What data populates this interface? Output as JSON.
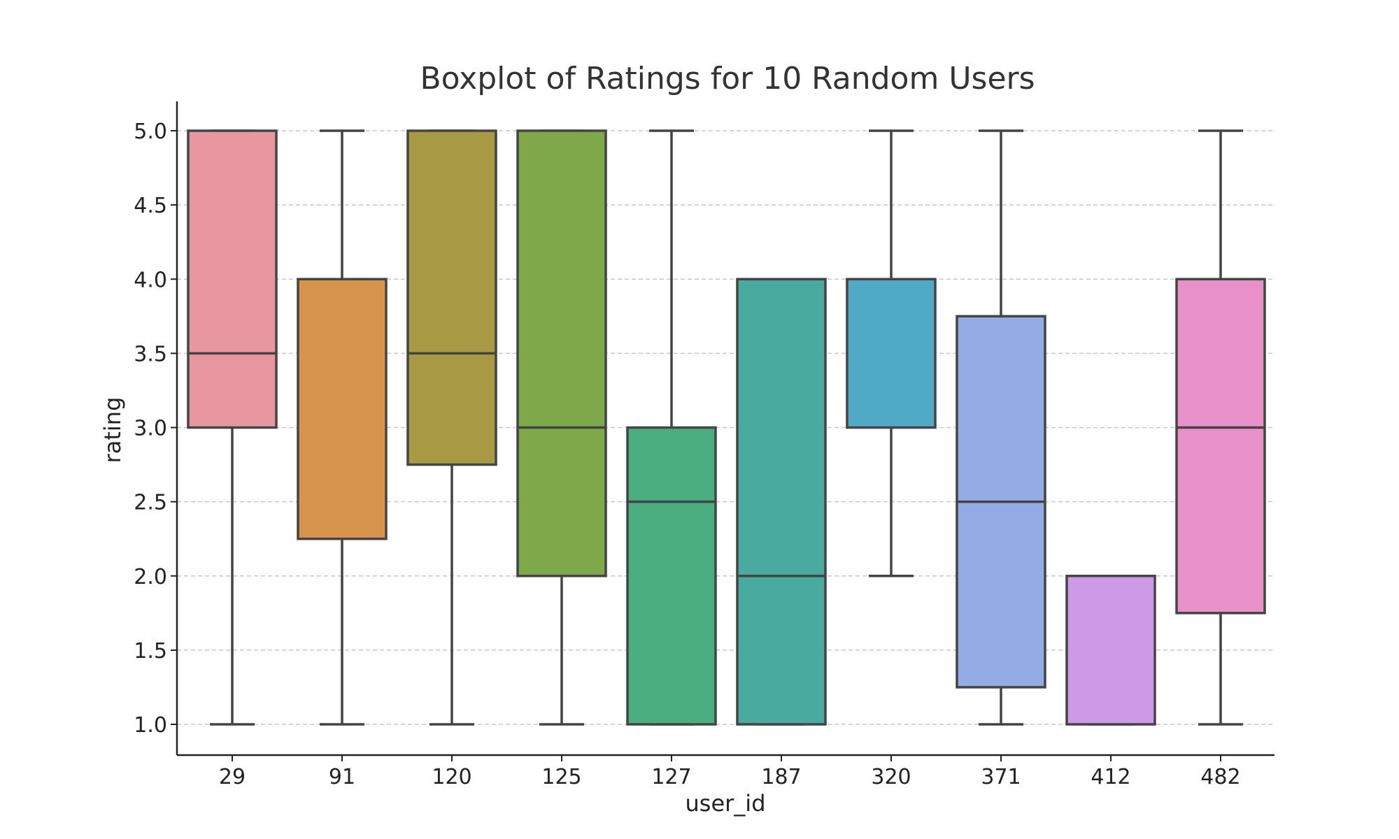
{
  "chart_data": {
    "type": "boxplot",
    "title": "Boxplot of Ratings for 10 Random Users",
    "xlabel": "user_id",
    "ylabel": "rating",
    "ylim": [
      0.8,
      5.2
    ],
    "yticks": [
      "1.0",
      "1.5",
      "2.0",
      "2.5",
      "3.0",
      "3.5",
      "4.0",
      "4.5",
      "5.0"
    ],
    "grid": "y",
    "legend": "none",
    "categories": [
      "29",
      "91",
      "120",
      "125",
      "127",
      "187",
      "320",
      "371",
      "412",
      "482"
    ],
    "boxes": [
      {
        "category": "29",
        "whislo": 1.0,
        "q1": 3.0,
        "med": 3.5,
        "q3": 5.0,
        "whishi": 5.0,
        "color": "#e8969f"
      },
      {
        "category": "91",
        "whislo": 1.0,
        "q1": 2.25,
        "med": 4.0,
        "q3": 4.0,
        "whishi": 5.0,
        "color": "#d6944c"
      },
      {
        "category": "120",
        "whislo": 1.0,
        "q1": 2.75,
        "med": 3.5,
        "q3": 5.0,
        "whishi": 5.0,
        "color": "#a89a45"
      },
      {
        "category": "125",
        "whislo": 1.0,
        "q1": 2.0,
        "med": 3.0,
        "q3": 5.0,
        "whishi": 5.0,
        "color": "#7fa84a"
      },
      {
        "category": "127",
        "whislo": 1.0,
        "q1": 1.0,
        "med": 2.5,
        "q3": 3.0,
        "whishi": 5.0,
        "color": "#4aae80"
      },
      {
        "category": "187",
        "whislo": 1.0,
        "q1": 1.0,
        "med": 2.0,
        "q3": 4.0,
        "whishi": 4.0,
        "color": "#49aaa0"
      },
      {
        "category": "320",
        "whislo": 2.0,
        "q1": 3.0,
        "med": 4.0,
        "q3": 4.0,
        "whishi": 5.0,
        "color": "#4eaac6"
      },
      {
        "category": "371",
        "whislo": 1.0,
        "q1": 1.25,
        "med": 2.5,
        "q3": 3.75,
        "whishi": 5.0,
        "color": "#94ace6"
      },
      {
        "category": "412",
        "whislo": 1.0,
        "q1": 1.0,
        "med": 2.0,
        "q3": 2.0,
        "whishi": 2.0,
        "color": "#cc9ae6"
      },
      {
        "category": "482",
        "whislo": 1.0,
        "q1": 1.75,
        "med": 3.0,
        "q3": 4.0,
        "whishi": 5.0,
        "color": "#e890c8"
      }
    ]
  }
}
